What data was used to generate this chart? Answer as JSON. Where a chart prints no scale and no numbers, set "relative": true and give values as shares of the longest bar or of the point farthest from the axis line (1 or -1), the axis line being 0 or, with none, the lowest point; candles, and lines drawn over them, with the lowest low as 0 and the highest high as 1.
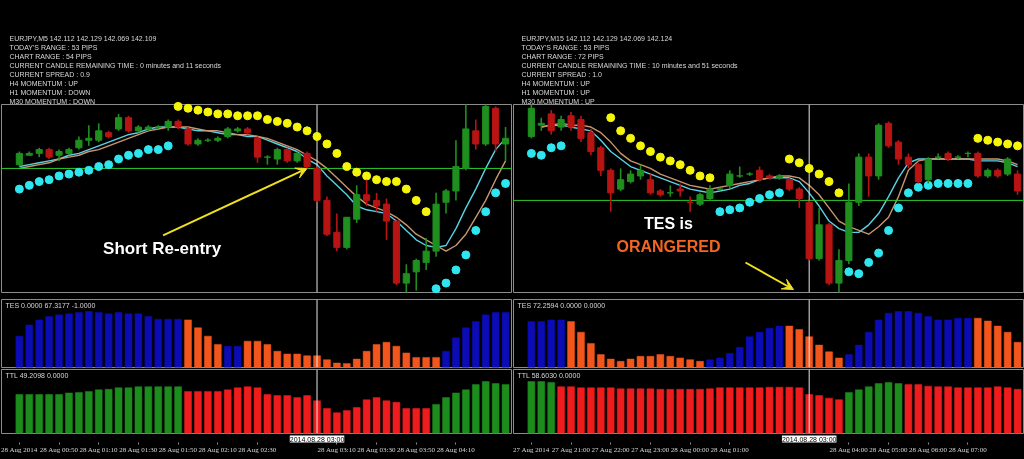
{
  "chart_data": [
    {
      "type": "candlestick",
      "title": "EURJPY,M5 142.112 142.129 142.069 142.109",
      "annotations": [
        "TODAY'S RANGE : 53 PIPS",
        "CHART RANGE : 54 PIPS",
        "CURRENT CANDLE REMAINING TIME : 0 minutes and 11 seconds",
        "CURRENT SPREAD : 0.9",
        "H4 MOMENTUM : UP",
        "H1 MOMENTUM : DOWN",
        "M30 MOMENTUM : DOWN",
        {
          "text": "Short Re-entry",
          "x": "2014-08-28T02:55",
          "y": 0.66
        }
      ],
      "relative": true,
      "xlim": [
        "2014-08-28T00:21",
        "2014-08-28T04:38"
      ],
      "tick_labels": false,
      "x": [
        "2014-08-28T00:30",
        "2014-08-28T00:35",
        "2014-08-28T00:40",
        "2014-08-28T00:45",
        "2014-08-28T00:50",
        "2014-08-28T00:55",
        "2014-08-28T01:00",
        "2014-08-28T01:05",
        "2014-08-28T01:10",
        "2014-08-28T01:15",
        "2014-08-28T01:20",
        "2014-08-28T01:25",
        "2014-08-28T01:30",
        "2014-08-28T01:35",
        "2014-08-28T01:40",
        "2014-08-28T01:45",
        "2014-08-28T01:50",
        "2014-08-28T01:55",
        "2014-08-28T02:00",
        "2014-08-28T02:05",
        "2014-08-28T02:10",
        "2014-08-28T02:15",
        "2014-08-28T02:20",
        "2014-08-28T02:25",
        "2014-08-28T02:30",
        "2014-08-28T02:35",
        "2014-08-28T02:40",
        "2014-08-28T02:45",
        "2014-08-28T02:50",
        "2014-08-28T02:55",
        "2014-08-28T03:00",
        "2014-08-28T03:05",
        "2014-08-28T03:10",
        "2014-08-28T03:15",
        "2014-08-28T03:20",
        "2014-08-28T03:25",
        "2014-08-28T03:30",
        "2014-08-28T03:35",
        "2014-08-28T03:40",
        "2014-08-28T03:45",
        "2014-08-28T03:50",
        "2014-08-28T03:55",
        "2014-08-28T04:00",
        "2014-08-28T04:05",
        "2014-08-28T04:10",
        "2014-08-28T04:15",
        "2014-08-28T04:20",
        "2014-08-28T04:25",
        "2014-08-28T04:30",
        "2014-08-28T04:35"
      ],
      "ohlc": [
        [
          0.68,
          0.75,
          0.67,
          0.74
        ],
        [
          0.73,
          0.75,
          0.73,
          0.74
        ],
        [
          0.74,
          0.77,
          0.72,
          0.76
        ],
        [
          0.76,
          0.77,
          0.71,
          0.72
        ],
        [
          0.73,
          0.76,
          0.7,
          0.75
        ],
        [
          0.74,
          0.77,
          0.73,
          0.76
        ],
        [
          0.77,
          0.83,
          0.76,
          0.81
        ],
        [
          0.81,
          0.89,
          0.78,
          0.82
        ],
        [
          0.81,
          0.9,
          0.8,
          0.86
        ],
        [
          0.85,
          0.86,
          0.82,
          0.83
        ],
        [
          0.87,
          0.95,
          0.86,
          0.93
        ],
        [
          0.93,
          0.94,
          0.85,
          0.86
        ],
        [
          0.86,
          0.89,
          0.85,
          0.88
        ],
        [
          0.87,
          0.89,
          0.86,
          0.88
        ],
        [
          0.88,
          0.89,
          0.87,
          0.88
        ],
        [
          0.88,
          0.92,
          0.86,
          0.91
        ],
        [
          0.91,
          0.92,
          0.87,
          0.88
        ],
        [
          0.87,
          0.88,
          0.78,
          0.79
        ],
        [
          0.79,
          0.82,
          0.78,
          0.81
        ],
        [
          0.81,
          0.82,
          0.8,
          0.81
        ],
        [
          0.81,
          0.83,
          0.8,
          0.82
        ],
        [
          0.83,
          0.88,
          0.82,
          0.87
        ],
        [
          0.86,
          0.88,
          0.85,
          0.87
        ],
        [
          0.87,
          0.88,
          0.84,
          0.85
        ],
        [
          0.82,
          0.83,
          0.69,
          0.72
        ],
        [
          0.72,
          0.73,
          0.68,
          0.72
        ],
        [
          0.71,
          0.77,
          0.68,
          0.76
        ],
        [
          0.76,
          0.77,
          0.69,
          0.7
        ],
        [
          0.7,
          0.75,
          0.69,
          0.74
        ],
        [
          0.74,
          0.75,
          0.66,
          0.67
        ],
        [
          0.66,
          0.67,
          0.48,
          0.49
        ],
        [
          0.49,
          0.51,
          0.3,
          0.31
        ],
        [
          0.32,
          0.42,
          0.22,
          0.24
        ],
        [
          0.24,
          0.4,
          0.23,
          0.4
        ],
        [
          0.39,
          0.57,
          0.37,
          0.52
        ],
        [
          0.52,
          0.6,
          0.46,
          0.49
        ],
        [
          0.49,
          0.53,
          0.43,
          0.46
        ],
        [
          0.47,
          0.5,
          0.28,
          0.38
        ],
        [
          0.38,
          0.38,
          0.04,
          0.05
        ],
        [
          0.05,
          0.15,
          0.0,
          0.1
        ],
        [
          0.11,
          0.18,
          0.01,
          0.17
        ],
        [
          0.16,
          0.29,
          0.12,
          0.22
        ],
        [
          0.22,
          0.53,
          0.19,
          0.47
        ],
        [
          0.48,
          0.55,
          0.42,
          0.54
        ],
        [
          0.54,
          0.81,
          0.49,
          0.67
        ],
        [
          0.66,
          1.0,
          0.65,
          0.87
        ],
        [
          0.86,
          0.92,
          0.76,
          0.79
        ],
        [
          0.79,
          1.0,
          0.78,
          0.99
        ],
        [
          0.98,
          0.99,
          0.75,
          0.79
        ],
        [
          0.79,
          0.88,
          0.7,
          0.82
        ]
      ],
      "colors": [
        "#1f8f1f",
        "#1f8f1f",
        "#1f8f1f",
        "#b81414",
        "#1f8f1f",
        "#1f8f1f",
        "#1f8f1f",
        "#1f8f1f",
        "#1f8f1f",
        "#b81414",
        "#1f8f1f",
        "#b81414",
        "#1f8f1f",
        "#1f8f1f",
        "#1f8f1f",
        "#1f8f1f",
        "#b81414",
        "#b81414",
        "#1f8f1f",
        "#1f8f1f",
        "#1f8f1f",
        "#1f8f1f",
        "#1f8f1f",
        "#b81414",
        "#b81414",
        "#1f8f1f",
        "#1f8f1f",
        "#b81414",
        "#1f8f1f",
        "#b81414",
        "#b81414",
        "#b81414",
        "#b81414",
        "#1f8f1f",
        "#1f8f1f",
        "#b81414",
        "#b81414",
        "#b81414",
        "#b81414",
        "#1f8f1f",
        "#1f8f1f",
        "#1f8f1f",
        "#1f8f1f",
        "#1f8f1f",
        "#1f8f1f",
        "#1f8f1f",
        "#b81414",
        "#1f8f1f",
        "#b81414",
        "#1f8f1f"
      ],
      "series": [
        {
          "type": "scatter",
          "marker": "circle",
          "color": "#f5f50a",
          "values": [
            null,
            null,
            null,
            null,
            null,
            null,
            null,
            null,
            null,
            null,
            null,
            null,
            null,
            null,
            null,
            null,
            0.99,
            0.98,
            0.97,
            0.96,
            0.95,
            0.95,
            0.94,
            0.94,
            0.94,
            0.92,
            0.91,
            0.9,
            0.88,
            0.86,
            0.83,
            0.79,
            0.74,
            0.67,
            0.64,
            0.62,
            0.6,
            0.59,
            0.59,
            0.55,
            0.49,
            0.43,
            null,
            null,
            null,
            null,
            null,
            null,
            null,
            null
          ]
        },
        {
          "type": "scatter",
          "marker": "circle",
          "color": "#2ee6f0",
          "values": [
            0.55,
            0.57,
            0.59,
            0.6,
            0.62,
            0.63,
            0.64,
            0.65,
            0.67,
            0.68,
            0.71,
            0.73,
            0.74,
            0.76,
            0.76,
            0.78,
            null,
            null,
            null,
            null,
            null,
            null,
            null,
            null,
            null,
            null,
            null,
            null,
            null,
            null,
            null,
            null,
            null,
            null,
            null,
            null,
            null,
            null,
            null,
            null,
            null,
            null,
            0.02,
            0.05,
            0.12,
            0.2,
            0.33,
            0.43,
            0.53,
            0.58
          ]
        },
        {
          "type": "line",
          "color": "#5ad2e6",
          "values": [
            0.67,
            0.68,
            0.69,
            0.7,
            0.71,
            0.73,
            0.74,
            0.76,
            0.78,
            0.8,
            0.82,
            0.84,
            0.85,
            0.87,
            0.88,
            0.88,
            0.88,
            0.87,
            0.86,
            0.86,
            0.85,
            0.84,
            0.84,
            0.83,
            0.83,
            0.81,
            0.79,
            0.77,
            0.75,
            0.71,
            0.68,
            0.62,
            0.57,
            0.52,
            0.46,
            0.44,
            0.43,
            0.42,
            0.38,
            0.33,
            0.28,
            0.25,
            0.24,
            0.25,
            0.34,
            0.45,
            0.55,
            0.66,
            0.76,
            0.82
          ]
        },
        {
          "type": "line",
          "color": "#c8966e",
          "values": [
            0.66,
            0.67,
            0.68,
            0.69,
            0.71,
            0.72,
            0.73,
            0.75,
            0.76,
            0.78,
            0.8,
            0.82,
            0.84,
            0.86,
            0.87,
            0.88,
            0.88,
            0.88,
            0.87,
            0.86,
            0.86,
            0.85,
            0.84,
            0.84,
            0.83,
            0.82,
            0.8,
            0.78,
            0.76,
            0.73,
            0.7,
            0.66,
            0.61,
            0.56,
            0.51,
            0.47,
            0.45,
            0.43,
            0.4,
            0.36,
            0.31,
            0.28,
            0.25,
            0.22,
            0.25,
            0.31,
            0.4,
            0.49,
            0.6,
            0.7
          ]
        }
      ],
      "ref_lines": [
        {
          "axis": "y",
          "value": 0.66,
          "color": "#2ecc2e"
        },
        {
          "axis": "x",
          "value": "2014-08-28T03:00",
          "color": "#e6e6e6"
        }
      ]
    },
    {
      "type": "candlestick",
      "title": "EURJPY,M15 142.112 142.129 142.069 142.124",
      "annotations": [
        "TODAY'S RANGE : 53 PIPS",
        "CHART RANGE : 72 PIPS",
        "CURRENT CANDLE REMAINING TIME : 10 minutes and 51 seconds",
        "CURRENT SPREAD : 1.0",
        "H4 MOMENTUM : UP",
        "H1 MOMENTUM : UP",
        "M30 MOMENTUM : UP",
        "TES is ORANGERED"
      ],
      "relative": true,
      "xlim": [
        "2014-08-27T19:33",
        "2014-08-28T08:24"
      ],
      "tick_labels": false,
      "x": [
        "2014-08-27T20:00",
        "2014-08-27T20:15",
        "2014-08-27T20:30",
        "2014-08-27T20:45",
        "2014-08-27T21:00",
        "2014-08-27T21:15",
        "2014-08-27T21:30",
        "2014-08-27T21:45",
        "2014-08-27T22:00",
        "2014-08-27T22:15",
        "2014-08-27T22:30",
        "2014-08-27T22:45",
        "2014-08-27T23:00",
        "2014-08-27T23:15",
        "2014-08-27T23:30",
        "2014-08-27T23:45",
        "2014-08-28T00:00",
        "2014-08-28T00:15",
        "2014-08-28T00:30",
        "2014-08-28T00:45",
        "2014-08-28T01:00",
        "2014-08-28T01:15",
        "2014-08-28T01:30",
        "2014-08-28T01:45",
        "2014-08-28T02:00",
        "2014-08-28T02:15",
        "2014-08-28T02:30",
        "2014-08-28T02:45",
        "2014-08-28T03:00",
        "2014-08-28T03:15",
        "2014-08-28T03:30",
        "2014-08-28T03:45",
        "2014-08-28T04:00",
        "2014-08-28T04:15",
        "2014-08-28T04:30",
        "2014-08-28T04:45",
        "2014-08-28T05:00",
        "2014-08-28T05:15",
        "2014-08-28T05:30",
        "2014-08-28T05:45",
        "2014-08-28T06:00",
        "2014-08-28T06:15",
        "2014-08-28T06:30",
        "2014-08-28T06:45",
        "2014-08-28T07:00",
        "2014-08-28T07:15",
        "2014-08-28T07:30",
        "2014-08-28T07:45",
        "2014-08-28T08:00",
        "2014-08-28T08:15"
      ],
      "ohlc": [
        [
          0.83,
          1.0,
          0.82,
          0.98
        ],
        [
          0.89,
          0.93,
          0.86,
          0.9
        ],
        [
          0.95,
          0.97,
          0.84,
          0.86
        ],
        [
          0.88,
          0.94,
          0.86,
          0.92
        ],
        [
          0.94,
          0.96,
          0.86,
          0.88
        ],
        [
          0.92,
          0.94,
          0.8,
          0.82
        ],
        [
          0.85,
          0.87,
          0.73,
          0.75
        ],
        [
          0.77,
          0.78,
          0.62,
          0.65
        ],
        [
          0.65,
          0.66,
          0.43,
          0.53
        ],
        [
          0.55,
          0.66,
          0.54,
          0.6
        ],
        [
          0.59,
          0.65,
          0.58,
          0.63
        ],
        [
          0.62,
          0.68,
          0.6,
          0.65
        ],
        [
          0.6,
          0.63,
          0.52,
          0.53
        ],
        [
          0.54,
          0.55,
          0.51,
          0.52
        ],
        [
          0.53,
          0.57,
          0.51,
          0.53
        ],
        [
          0.55,
          0.58,
          0.51,
          0.54
        ],
        [
          0.48,
          0.51,
          0.43,
          0.48
        ],
        [
          0.47,
          0.53,
          0.46,
          0.52
        ],
        [
          0.5,
          0.57,
          0.49,
          0.55
        ],
        [
          0.55,
          0.56,
          0.54,
          0.55
        ],
        [
          0.57,
          0.65,
          0.55,
          0.63
        ],
        [
          0.62,
          0.67,
          0.61,
          0.62
        ],
        [
          0.63,
          0.64,
          0.62,
          0.63
        ],
        [
          0.65,
          0.67,
          0.59,
          0.6
        ],
        [
          0.62,
          0.63,
          0.6,
          0.61
        ],
        [
          0.61,
          0.63,
          0.6,
          0.62
        ],
        [
          0.6,
          0.61,
          0.54,
          0.55
        ],
        [
          0.55,
          0.56,
          0.45,
          0.5
        ],
        [
          0.48,
          0.49,
          0.17,
          0.18
        ],
        [
          0.18,
          0.45,
          0.17,
          0.36
        ],
        [
          0.36,
          0.37,
          0.04,
          0.05
        ],
        [
          0.05,
          0.23,
          0.0,
          0.17
        ],
        [
          0.17,
          0.58,
          0.15,
          0.48
        ],
        [
          0.48,
          0.74,
          0.46,
          0.72
        ],
        [
          0.72,
          0.74,
          0.51,
          0.62
        ],
        [
          0.62,
          0.9,
          0.6,
          0.89
        ],
        [
          0.9,
          0.91,
          0.77,
          0.78
        ],
        [
          0.8,
          0.81,
          0.68,
          0.71
        ],
        [
          0.72,
          0.74,
          0.66,
          0.68
        ],
        [
          0.68,
          0.69,
          0.58,
          0.59
        ],
        [
          0.6,
          0.72,
          0.58,
          0.71
        ],
        [
          0.72,
          0.74,
          0.71,
          0.72
        ],
        [
          0.74,
          0.75,
          0.7,
          0.71
        ],
        [
          0.72,
          0.73,
          0.71,
          0.72
        ],
        [
          0.74,
          0.75,
          0.72,
          0.74
        ],
        [
          0.74,
          0.75,
          0.61,
          0.62
        ],
        [
          0.62,
          0.66,
          0.61,
          0.65
        ],
        [
          0.65,
          0.66,
          0.61,
          0.62
        ],
        [
          0.63,
          0.72,
          0.62,
          0.71
        ],
        [
          0.63,
          0.65,
          0.52,
          0.54
        ]
      ],
      "colors": [
        "#1f8f1f",
        "#1f8f1f",
        "#b81414",
        "#1f8f1f",
        "#b81414",
        "#b81414",
        "#b81414",
        "#b81414",
        "#b81414",
        "#1f8f1f",
        "#1f8f1f",
        "#1f8f1f",
        "#b81414",
        "#b81414",
        "#1f8f1f",
        "#b81414",
        "#b81414",
        "#1f8f1f",
        "#1f8f1f",
        "#1f8f1f",
        "#1f8f1f",
        "#1f8f1f",
        "#1f8f1f",
        "#b81414",
        "#b81414",
        "#1f8f1f",
        "#b81414",
        "#b81414",
        "#b81414",
        "#1f8f1f",
        "#b81414",
        "#1f8f1f",
        "#1f8f1f",
        "#1f8f1f",
        "#b81414",
        "#1f8f1f",
        "#b81414",
        "#b81414",
        "#b81414",
        "#b81414",
        "#1f8f1f",
        "#1f8f1f",
        "#b81414",
        "#1f8f1f",
        "#1f8f1f",
        "#b81414",
        "#1f8f1f",
        "#b81414",
        "#1f8f1f",
        "#b81414"
      ],
      "series": [
        {
          "type": "scatter",
          "marker": "circle",
          "color": "#f5f50a",
          "values": [
            null,
            null,
            null,
            null,
            null,
            null,
            null,
            null,
            0.93,
            0.86,
            0.82,
            0.78,
            0.75,
            0.72,
            0.7,
            0.68,
            0.65,
            0.62,
            0.61,
            null,
            null,
            null,
            null,
            null,
            null,
            null,
            0.71,
            0.69,
            0.66,
            0.63,
            0.59,
            0.53,
            null,
            null,
            null,
            null,
            null,
            null,
            null,
            null,
            null,
            null,
            null,
            null,
            null,
            0.82,
            0.81,
            0.8,
            0.79,
            0.78
          ]
        },
        {
          "type": "scatter",
          "marker": "circle",
          "color": "#2ee6f0",
          "values": [
            0.74,
            0.73,
            0.77,
            0.78,
            null,
            null,
            null,
            null,
            null,
            null,
            null,
            null,
            null,
            null,
            null,
            null,
            null,
            null,
            null,
            0.43,
            0.44,
            0.45,
            0.48,
            0.5,
            0.52,
            0.53,
            null,
            null,
            null,
            null,
            null,
            null,
            0.11,
            0.1,
            0.16,
            0.21,
            0.33,
            0.45,
            0.53,
            0.56,
            0.57,
            0.58,
            0.58,
            0.58,
            0.58,
            null,
            null,
            null,
            null,
            null
          ]
        },
        {
          "type": "line",
          "color": "#5ad2e6",
          "values": [
            null,
            0.88,
            0.89,
            0.89,
            0.88,
            0.87,
            0.86,
            0.81,
            0.75,
            0.71,
            0.67,
            0.65,
            0.63,
            0.61,
            0.59,
            0.57,
            0.55,
            0.54,
            0.53,
            0.54,
            0.55,
            0.57,
            0.58,
            0.6,
            0.61,
            0.61,
            0.61,
            0.59,
            0.53,
            0.46,
            0.38,
            0.34,
            0.32,
            0.32,
            0.36,
            0.42,
            0.51,
            0.61,
            0.69,
            0.71,
            0.71,
            0.71,
            0.71,
            0.71,
            0.71,
            0.7,
            0.7,
            0.7,
            0.69,
            0.67
          ]
        },
        {
          "type": "line",
          "color": "#c8966e",
          "values": [
            null,
            0.88,
            0.89,
            0.9,
            0.89,
            0.89,
            0.88,
            0.85,
            0.8,
            0.74,
            0.7,
            0.68,
            0.66,
            0.63,
            0.61,
            0.59,
            0.57,
            0.56,
            0.55,
            0.56,
            0.57,
            0.58,
            0.59,
            0.6,
            0.61,
            0.62,
            0.62,
            0.61,
            0.57,
            0.52,
            0.45,
            0.38,
            0.35,
            0.33,
            0.31,
            0.35,
            0.4,
            0.51,
            0.65,
            0.7,
            0.71,
            0.71,
            0.71,
            0.71,
            0.71,
            0.71,
            0.71,
            0.71,
            0.7,
            0.68
          ]
        }
      ],
      "ref_lines": [
        {
          "axis": "y",
          "value": 0.49,
          "color": "#2ecc2e"
        },
        {
          "axis": "x",
          "value": "2014-08-28T03:00",
          "color": "#e6e6e6"
        }
      ]
    },
    {
      "type": "bar",
      "title": "TES 0.0000 67.3177 -1.0000",
      "relative": true,
      "xlim": [
        "2014-08-28T00:21",
        "2014-08-28T04:38"
      ],
      "tick_labels": false,
      "x": [
        "2014-08-28T00:30",
        "2014-08-28T00:35",
        "2014-08-28T00:40",
        "2014-08-28T00:45",
        "2014-08-28T00:50",
        "2014-08-28T00:55",
        "2014-08-28T01:00",
        "2014-08-28T01:05",
        "2014-08-28T01:10",
        "2014-08-28T01:15",
        "2014-08-28T01:20",
        "2014-08-28T01:25",
        "2014-08-28T01:30",
        "2014-08-28T01:35",
        "2014-08-28T01:40",
        "2014-08-28T01:45",
        "2014-08-28T01:50",
        "2014-08-28T01:55",
        "2014-08-28T02:00",
        "2014-08-28T02:05",
        "2014-08-28T02:10",
        "2014-08-28T02:15",
        "2014-08-28T02:20",
        "2014-08-28T02:25",
        "2014-08-28T02:30",
        "2014-08-28T02:35",
        "2014-08-28T02:40",
        "2014-08-28T02:45",
        "2014-08-28T02:50",
        "2014-08-28T02:55",
        "2014-08-28T03:00",
        "2014-08-28T03:05",
        "2014-08-28T03:10",
        "2014-08-28T03:15",
        "2014-08-28T03:20",
        "2014-08-28T03:25",
        "2014-08-28T03:30",
        "2014-08-28T03:35",
        "2014-08-28T03:40",
        "2014-08-28T03:45",
        "2014-08-28T03:50",
        "2014-08-28T03:55",
        "2014-08-28T04:00",
        "2014-08-28T04:05",
        "2014-08-28T04:10",
        "2014-08-28T04:15",
        "2014-08-28T04:20",
        "2014-08-28T04:25",
        "2014-08-28T04:30",
        "2014-08-28T04:35"
      ],
      "values": [
        0.56,
        0.76,
        0.85,
        0.91,
        0.94,
        0.96,
        0.98,
        1.0,
        0.98,
        0.96,
        0.98,
        0.96,
        0.96,
        0.91,
        0.86,
        0.86,
        0.86,
        0.85,
        0.71,
        0.56,
        0.41,
        0.38,
        0.38,
        0.47,
        0.47,
        0.41,
        0.29,
        0.24,
        0.24,
        0.21,
        0.21,
        0.14,
        0.08,
        0.07,
        0.15,
        0.29,
        0.41,
        0.45,
        0.38,
        0.26,
        0.18,
        0.18,
        0.18,
        0.29,
        0.53,
        0.71,
        0.82,
        0.94,
        0.98,
        0.98
      ],
      "colors": [
        "#0c0cb4",
        "#0c0cb4",
        "#0c0cb4",
        "#0c0cb4",
        "#0c0cb4",
        "#0c0cb4",
        "#0c0cb4",
        "#0c0cb4",
        "#0c0cb4",
        "#0c0cb4",
        "#0c0cb4",
        "#0c0cb4",
        "#0c0cb4",
        "#0c0cb4",
        "#0c0cb4",
        "#0c0cb4",
        "#0c0cb4",
        "#f2561d",
        "#f2561d",
        "#f2561d",
        "#f2561d",
        "#0c0cb4",
        "#0c0cb4",
        "#f2561d",
        "#f2561d",
        "#f2561d",
        "#f2561d",
        "#f2561d",
        "#f2561d",
        "#f2561d",
        "#f2561d",
        "#f2561d",
        "#f2561d",
        "#f2561d",
        "#f2561d",
        "#f2561d",
        "#f2561d",
        "#f2561d",
        "#f2561d",
        "#f2561d",
        "#f2561d",
        "#f2561d",
        "#f2561d",
        "#0c0cb4",
        "#0c0cb4",
        "#0c0cb4",
        "#0c0cb4",
        "#0c0cb4",
        "#0c0cb4",
        "#0c0cb4"
      ],
      "ref_lines": [
        {
          "axis": "x",
          "value": "2014-08-28T03:00",
          "color": "#e6e6e6"
        }
      ]
    },
    {
      "type": "bar",
      "title": "TES 72.2594 0.0000 0.0000",
      "relative": true,
      "xlim": [
        "2014-08-27T19:33",
        "2014-08-28T08:24"
      ],
      "tick_labels": false,
      "x": [
        "2014-08-27T20:00",
        "2014-08-27T20:15",
        "2014-08-27T20:30",
        "2014-08-27T20:45",
        "2014-08-27T21:00",
        "2014-08-27T21:15",
        "2014-08-27T21:30",
        "2014-08-27T21:45",
        "2014-08-27T22:00",
        "2014-08-27T22:15",
        "2014-08-27T22:30",
        "2014-08-27T22:45",
        "2014-08-27T23:00",
        "2014-08-27T23:15",
        "2014-08-27T23:30",
        "2014-08-27T23:45",
        "2014-08-28T00:00",
        "2014-08-28T00:15",
        "2014-08-28T00:30",
        "2014-08-28T00:45",
        "2014-08-28T01:00",
        "2014-08-28T01:15",
        "2014-08-28T01:30",
        "2014-08-28T01:45",
        "2014-08-28T02:00",
        "2014-08-28T02:15",
        "2014-08-28T02:30",
        "2014-08-28T02:45",
        "2014-08-28T03:00",
        "2014-08-28T03:15",
        "2014-08-28T03:30",
        "2014-08-28T03:45",
        "2014-08-28T04:00",
        "2014-08-28T04:15",
        "2014-08-28T04:30",
        "2014-08-28T04:45",
        "2014-08-28T05:00",
        "2014-08-28T05:15",
        "2014-08-28T05:30",
        "2014-08-28T05:45",
        "2014-08-28T06:00",
        "2014-08-28T06:15",
        "2014-08-28T06:30",
        "2014-08-28T06:45",
        "2014-08-28T07:00",
        "2014-08-28T07:15",
        "2014-08-28T07:30",
        "2014-08-28T07:45",
        "2014-08-28T08:00",
        "2014-08-28T08:15"
      ],
      "values": [
        0.82,
        0.82,
        0.85,
        0.85,
        0.82,
        0.63,
        0.43,
        0.23,
        0.15,
        0.11,
        0.15,
        0.2,
        0.2,
        0.23,
        0.2,
        0.17,
        0.14,
        0.11,
        0.14,
        0.17,
        0.25,
        0.36,
        0.55,
        0.63,
        0.7,
        0.74,
        0.74,
        0.68,
        0.55,
        0.4,
        0.28,
        0.17,
        0.23,
        0.4,
        0.63,
        0.85,
        0.97,
        1.0,
        1.0,
        0.97,
        0.91,
        0.85,
        0.85,
        0.88,
        0.88,
        0.88,
        0.83,
        0.74,
        0.63,
        0.45
      ],
      "colors": [
        "#0c0cb4",
        "#0c0cb4",
        "#0c0cb4",
        "#0c0cb4",
        "#f2561d",
        "#f2561d",
        "#f2561d",
        "#f2561d",
        "#f2561d",
        "#f2561d",
        "#f2561d",
        "#f2561d",
        "#f2561d",
        "#f2561d",
        "#f2561d",
        "#f2561d",
        "#f2561d",
        "#f2561d",
        "#0c0cb4",
        "#0c0cb4",
        "#0c0cb4",
        "#0c0cb4",
        "#0c0cb4",
        "#0c0cb4",
        "#0c0cb4",
        "#0c0cb4",
        "#f2561d",
        "#f2561d",
        "#f2561d",
        "#f2561d",
        "#f2561d",
        "#f2561d",
        "#0c0cb4",
        "#0c0cb4",
        "#0c0cb4",
        "#0c0cb4",
        "#0c0cb4",
        "#0c0cb4",
        "#0c0cb4",
        "#0c0cb4",
        "#0c0cb4",
        "#0c0cb4",
        "#0c0cb4",
        "#0c0cb4",
        "#0c0cb4",
        "#f2561d",
        "#f2561d",
        "#f2561d",
        "#f2561d",
        "#f2561d"
      ],
      "ref_lines": [
        {
          "axis": "x",
          "value": "2014-08-28T03:00",
          "color": "#e6e6e6"
        }
      ]
    },
    {
      "type": "bar",
      "title": "TTL 49.2098 0.0000",
      "relative": true,
      "xlim": [
        "2014-08-28T00:21",
        "2014-08-28T04:38"
      ],
      "tick_labels": "x",
      "xticks": [
        {
          "value": "2014-08-28T00:30",
          "label": "28 Aug 2014"
        },
        {
          "value": "2014-08-28T00:50",
          "label": "28 Aug 00:50"
        },
        {
          "value": "2014-08-28T01:10",
          "label": "28 Aug 01:10"
        },
        {
          "value": "2014-08-28T01:30",
          "label": "28 Aug 01:30"
        },
        {
          "value": "2014-08-28T01:50",
          "label": "28 Aug 01:50"
        },
        {
          "value": "2014-08-28T02:10",
          "label": "28 Aug 02:10"
        },
        {
          "value": "2014-08-28T02:30",
          "label": "28 Aug 02:30"
        },
        {
          "value": "2014-08-28T03:10",
          "label": "28 Aug 03:10"
        },
        {
          "value": "2014-08-28T03:30",
          "label": "28 Aug 03:30"
        },
        {
          "value": "2014-08-28T03:50",
          "label": "28 Aug 03:50"
        },
        {
          "value": "2014-08-28T04:10",
          "label": "28 Aug 04:10"
        }
      ],
      "x": [
        "2014-08-28T00:30",
        "2014-08-28T00:35",
        "2014-08-28T00:40",
        "2014-08-28T00:45",
        "2014-08-28T00:50",
        "2014-08-28T00:55",
        "2014-08-28T01:00",
        "2014-08-28T01:05",
        "2014-08-28T01:10",
        "2014-08-28T01:15",
        "2014-08-28T01:20",
        "2014-08-28T01:25",
        "2014-08-28T01:30",
        "2014-08-28T01:35",
        "2014-08-28T01:40",
        "2014-08-28T01:45",
        "2014-08-28T01:50",
        "2014-08-28T01:55",
        "2014-08-28T02:00",
        "2014-08-28T02:05",
        "2014-08-28T02:10",
        "2014-08-28T02:15",
        "2014-08-28T02:20",
        "2014-08-28T02:25",
        "2014-08-28T02:30",
        "2014-08-28T02:35",
        "2014-08-28T02:40",
        "2014-08-28T02:45",
        "2014-08-28T02:50",
        "2014-08-28T02:55",
        "2014-08-28T03:00",
        "2014-08-28T03:05",
        "2014-08-28T03:10",
        "2014-08-28T03:15",
        "2014-08-28T03:20",
        "2014-08-28T03:25",
        "2014-08-28T03:30",
        "2014-08-28T03:35",
        "2014-08-28T03:40",
        "2014-08-28T03:45",
        "2014-08-28T03:50",
        "2014-08-28T03:55",
        "2014-08-28T04:00",
        "2014-08-28T04:05",
        "2014-08-28T04:10",
        "2014-08-28T04:15",
        "2014-08-28T04:20",
        "2014-08-28T04:25",
        "2014-08-28T04:30",
        "2014-08-28T04:35"
      ],
      "values": [
        0.75,
        0.75,
        0.75,
        0.75,
        0.75,
        0.78,
        0.79,
        0.81,
        0.84,
        0.85,
        0.88,
        0.88,
        0.9,
        0.9,
        0.9,
        0.9,
        0.9,
        0.81,
        0.81,
        0.81,
        0.81,
        0.84,
        0.88,
        0.9,
        0.88,
        0.75,
        0.73,
        0.73,
        0.69,
        0.73,
        0.63,
        0.48,
        0.4,
        0.44,
        0.5,
        0.65,
        0.69,
        0.63,
        0.6,
        0.48,
        0.48,
        0.48,
        0.56,
        0.69,
        0.78,
        0.84,
        0.94,
        1.0,
        0.96,
        0.94
      ],
      "colors": [
        "#1c8c1c",
        "#1c8c1c",
        "#1c8c1c",
        "#1c8c1c",
        "#1c8c1c",
        "#1c8c1c",
        "#1c8c1c",
        "#1c8c1c",
        "#1c8c1c",
        "#1c8c1c",
        "#1c8c1c",
        "#1c8c1c",
        "#1c8c1c",
        "#1c8c1c",
        "#1c8c1c",
        "#1c8c1c",
        "#1c8c1c",
        "#ee1c1c",
        "#ee1c1c",
        "#ee1c1c",
        "#ee1c1c",
        "#ee1c1c",
        "#ee1c1c",
        "#ee1c1c",
        "#ee1c1c",
        "#ee1c1c",
        "#ee1c1c",
        "#ee1c1c",
        "#ee1c1c",
        "#ee1c1c",
        "#ee1c1c",
        "#ee1c1c",
        "#ee1c1c",
        "#ee1c1c",
        "#ee1c1c",
        "#ee1c1c",
        "#ee1c1c",
        "#ee1c1c",
        "#ee1c1c",
        "#ee1c1c",
        "#ee1c1c",
        "#ee1c1c",
        "#1c8c1c",
        "#1c8c1c",
        "#1c8c1c",
        "#1c8c1c",
        "#1c8c1c",
        "#1c8c1c",
        "#1c8c1c",
        "#1c8c1c"
      ],
      "ref_lines": [
        {
          "axis": "x",
          "value": "2014-08-28T03:00",
          "color": "#e6e6e6",
          "label": "2014.08.28 03:00"
        }
      ]
    },
    {
      "type": "bar",
      "title": "TTL 58.6030 0.0000",
      "relative": true,
      "xlim": [
        "2014-08-27T19:33",
        "2014-08-28T08:24"
      ],
      "tick_labels": "x",
      "xticks": [
        {
          "value": "2014-08-27T20:00",
          "label": "27 Aug 2014"
        },
        {
          "value": "2014-08-27T21:00",
          "label": "27 Aug 21:00"
        },
        {
          "value": "2014-08-27T22:00",
          "label": "27 Aug 22:00"
        },
        {
          "value": "2014-08-27T23:00",
          "label": "27 Aug 23:00"
        },
        {
          "value": "2014-08-28T00:00",
          "label": "28 Aug 00:00"
        },
        {
          "value": "2014-08-28T01:00",
          "label": "28 Aug 01:00"
        },
        {
          "value": "2014-08-28T04:00",
          "label": "28 Aug 04:00"
        },
        {
          "value": "2014-08-28T05:00",
          "label": "28 Aug 05:00"
        },
        {
          "value": "2014-08-28T06:00",
          "label": "28 Aug 06:00"
        },
        {
          "value": "2014-08-28T07:00",
          "label": "28 Aug 07:00"
        }
      ],
      "x": [
        "2014-08-27T20:00",
        "2014-08-27T20:15",
        "2014-08-27T20:30",
        "2014-08-27T20:45",
        "2014-08-27T21:00",
        "2014-08-27T21:15",
        "2014-08-27T21:30",
        "2014-08-27T21:45",
        "2014-08-27T22:00",
        "2014-08-27T22:15",
        "2014-08-27T22:30",
        "2014-08-27T22:45",
        "2014-08-27T23:00",
        "2014-08-27T23:15",
        "2014-08-27T23:30",
        "2014-08-27T23:45",
        "2014-08-28T00:00",
        "2014-08-28T00:15",
        "2014-08-28T00:30",
        "2014-08-28T00:45",
        "2014-08-28T01:00",
        "2014-08-28T01:15",
        "2014-08-28T01:30",
        "2014-08-28T01:45",
        "2014-08-28T02:00",
        "2014-08-28T02:15",
        "2014-08-28T02:30",
        "2014-08-28T02:45",
        "2014-08-28T03:00",
        "2014-08-28T03:15",
        "2014-08-28T03:30",
        "2014-08-28T03:45",
        "2014-08-28T04:00",
        "2014-08-28T04:15",
        "2014-08-28T04:30",
        "2014-08-28T04:45",
        "2014-08-28T05:00",
        "2014-08-28T05:15",
        "2014-08-28T05:30",
        "2014-08-28T05:45",
        "2014-08-28T06:00",
        "2014-08-28T06:15",
        "2014-08-28T06:30",
        "2014-08-28T06:45",
        "2014-08-28T07:00",
        "2014-08-28T07:15",
        "2014-08-28T07:30",
        "2014-08-28T07:45",
        "2014-08-28T08:00",
        "2014-08-28T08:15"
      ],
      "values": [
        1.0,
        1.0,
        0.98,
        0.9,
        0.9,
        0.88,
        0.88,
        0.88,
        0.88,
        0.86,
        0.86,
        0.86,
        0.86,
        0.85,
        0.85,
        0.85,
        0.85,
        0.85,
        0.86,
        0.88,
        0.88,
        0.88,
        0.88,
        0.88,
        0.89,
        0.89,
        0.89,
        0.88,
        0.75,
        0.73,
        0.68,
        0.65,
        0.79,
        0.84,
        0.9,
        0.96,
        0.98,
        0.96,
        0.94,
        0.94,
        0.91,
        0.9,
        0.9,
        0.88,
        0.88,
        0.88,
        0.88,
        0.9,
        0.88,
        0.85
      ],
      "colors": [
        "#1c8c1c",
        "#1c8c1c",
        "#1c8c1c",
        "#ee1c1c",
        "#ee1c1c",
        "#ee1c1c",
        "#ee1c1c",
        "#ee1c1c",
        "#ee1c1c",
        "#ee1c1c",
        "#ee1c1c",
        "#ee1c1c",
        "#ee1c1c",
        "#ee1c1c",
        "#ee1c1c",
        "#ee1c1c",
        "#ee1c1c",
        "#ee1c1c",
        "#ee1c1c",
        "#ee1c1c",
        "#ee1c1c",
        "#ee1c1c",
        "#ee1c1c",
        "#ee1c1c",
        "#ee1c1c",
        "#ee1c1c",
        "#ee1c1c",
        "#ee1c1c",
        "#ee1c1c",
        "#ee1c1c",
        "#ee1c1c",
        "#ee1c1c",
        "#1c8c1c",
        "#1c8c1c",
        "#1c8c1c",
        "#1c8c1c",
        "#1c8c1c",
        "#1c8c1c",
        "#ee1c1c",
        "#ee1c1c",
        "#ee1c1c",
        "#ee1c1c",
        "#ee1c1c",
        "#ee1c1c",
        "#ee1c1c",
        "#ee1c1c",
        "#ee1c1c",
        "#ee1c1c",
        "#ee1c1c",
        "#ee1c1c"
      ],
      "ref_lines": [
        {
          "axis": "x",
          "value": "2014-08-28T03:00",
          "color": "#e6e6e6",
          "label": "2014.08.28 03:00"
        }
      ]
    }
  ]
}
